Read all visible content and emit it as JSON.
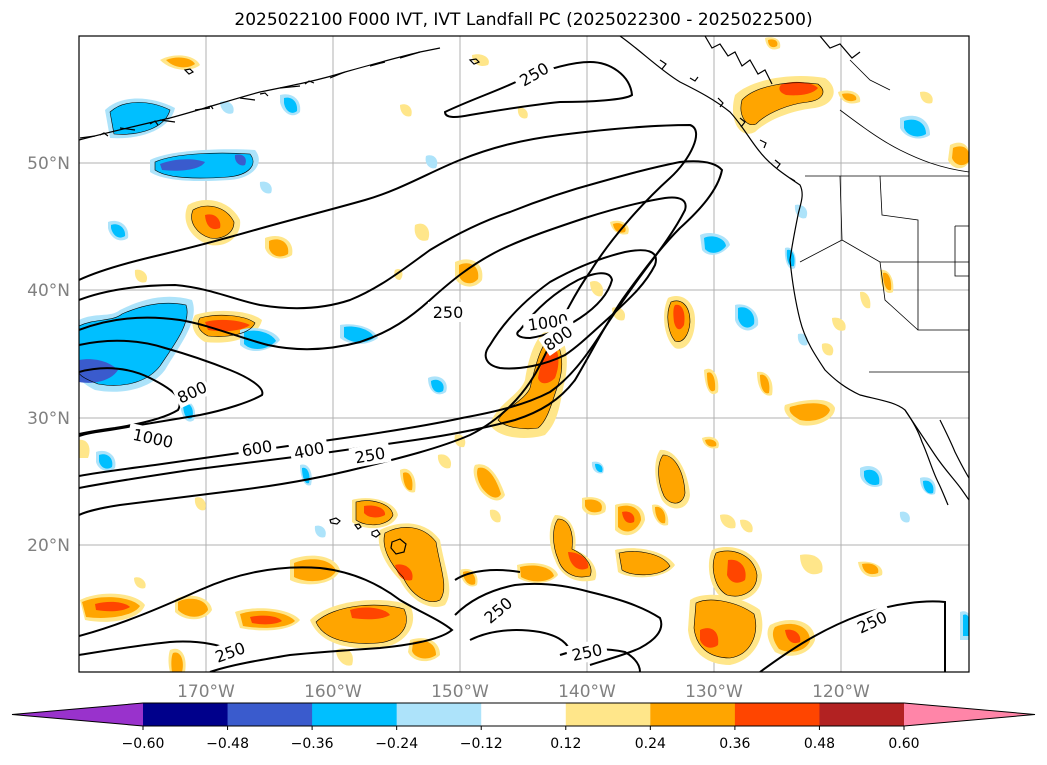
{
  "title": "2025022100 F000 IVT, IVT Landfall PC (2025022300 - 2025022500)",
  "lat_labels": [
    "50°N",
    "40°N",
    "30°N",
    "20°N"
  ],
  "lon_labels": [
    "170°W",
    "160°W",
    "150°W",
    "140°W",
    "130°W",
    "120°W"
  ],
  "contour_levels": [
    "250",
    "400",
    "600",
    "800",
    "1000"
  ],
  "contour_labels": [
    {
      "text": "250",
      "id": "c250-north"
    },
    {
      "text": "250",
      "id": "c250-mid"
    },
    {
      "text": "1000",
      "id": "c1000-east"
    },
    {
      "text": "800",
      "id": "c800-east"
    },
    {
      "text": "800",
      "id": "c800-west"
    },
    {
      "text": "1000",
      "id": "c1000-west"
    },
    {
      "text": "600",
      "id": "c600"
    },
    {
      "text": "400",
      "id": "c400"
    },
    {
      "text": "250",
      "id": "c250-south"
    },
    {
      "text": "250",
      "id": "c250-sw1"
    },
    {
      "text": "250",
      "id": "c250-sw2"
    },
    {
      "text": "250",
      "id": "c250-s"
    },
    {
      "text": "250",
      "id": "c250-se"
    }
  ],
  "colorbar": {
    "ticks": [
      "−0.60",
      "−0.48",
      "−0.36",
      "−0.24",
      "−0.12",
      "0.12",
      "0.24",
      "0.36",
      "0.48",
      "0.60"
    ],
    "colors": [
      "#9932cc",
      "#00008b",
      "#3a5bcd",
      "#00bfff",
      "#ade3fa",
      "#ffffff",
      "#ffe68a",
      "#ffa500",
      "#ff4500",
      "#b22222",
      "#ff85a8"
    ]
  },
  "colors": {
    "pos1": "#ffe68a",
    "pos2": "#ffa500",
    "pos3": "#ff4500",
    "neg1": "#ade3fa",
    "neg2": "#00bfff",
    "neg3": "#3a5bcd"
  }
}
